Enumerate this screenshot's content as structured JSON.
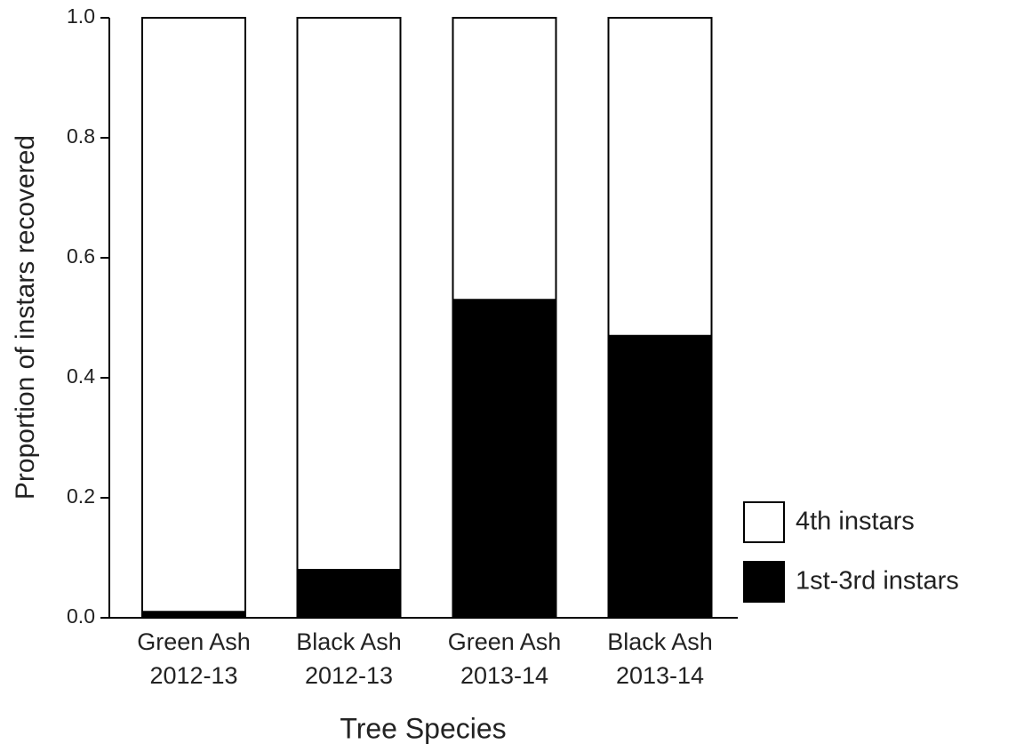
{
  "chart_data": {
    "type": "stacked_bar",
    "x_label": "Tree Species",
    "y_label": "Proportion of instars recovered",
    "categories": [
      "Green Ash\n2012-13",
      "Black Ash\n2012-13",
      "Green Ash\n2013-14",
      "Black Ash\n2013-14"
    ],
    "series": [
      {
        "name": "1st-3rd instars",
        "color": "#000000",
        "values": [
          0.01,
          0.08,
          0.53,
          0.47
        ]
      },
      {
        "name": "4th instars",
        "color": "#ffffff",
        "values": [
          0.99,
          0.92,
          0.47,
          0.53
        ]
      }
    ],
    "ylim": [
      0,
      1
    ],
    "yticks": [
      {
        "value": 0,
        "label": "0.0"
      },
      0.2,
      0.4,
      0.6,
      0.8,
      {
        "value": 1,
        "label": "1.0"
      }
    ],
    "legend": "lower right"
  }
}
